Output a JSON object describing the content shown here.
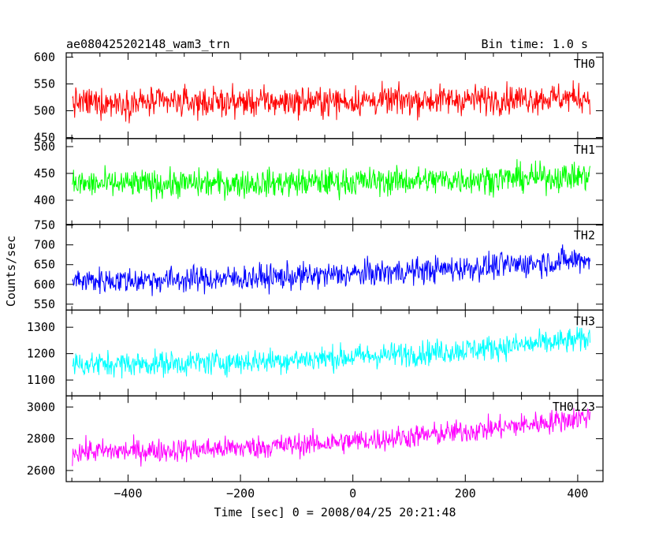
{
  "header": {
    "title": "ae080425202148_wam3_trn",
    "bin_time": "Bin time: 1.0 s"
  },
  "axes": {
    "xlabel": "Time [sec] 0 = 2008/04/25 20:21:48",
    "ylabel": "Counts/sec"
  },
  "chart_data": {
    "type": "line",
    "title": "ae080425202148_wam3_trn",
    "subtitle": "Bin time: 1.0 s",
    "xlabel": "Time [sec] 0 = 2008/04/25 20:21:48",
    "ylabel": "Counts/sec",
    "xlim": [
      -510,
      445
    ],
    "x_ticks": [
      -400,
      -200,
      0,
      200,
      400
    ],
    "x_tick_labels": [
      "−400",
      "−200",
      "0",
      "200",
      "400"
    ],
    "x_start": -499,
    "x_end": 422,
    "x_step": 1,
    "grid": false,
    "panels": [
      {
        "name": "TH0",
        "color": "#ff0000",
        "ylim": [
          448,
          608
        ],
        "y_ticks": [
          450,
          500,
          550,
          600
        ],
        "y_tick_labels": [
          "450",
          "500",
          "550",
          "600"
        ],
        "mean_start": 515,
        "mean_end": 525,
        "noise": 23
      },
      {
        "name": "TH1",
        "color": "#00ff00",
        "ylim": [
          355,
          515
        ],
        "y_ticks": [
          400,
          450,
          500
        ],
        "y_tick_labels": [
          "400",
          "450",
          "500"
        ],
        "mean_start": 430,
        "mean_end": 445,
        "noise": 22
      },
      {
        "name": "TH2",
        "color": "#0000ff",
        "ylim": [
          535,
          752
        ],
        "y_ticks": [
          550,
          600,
          650,
          700,
          750
        ],
        "y_tick_labels": [
          "550",
          "600",
          "650",
          "700",
          "750"
        ],
        "mean_start": 610,
        "mean_end": 665,
        "noise": 28
      },
      {
        "name": "TH3",
        "color": "#00ffff",
        "ylim": [
          1040,
          1365
        ],
        "y_ticks": [
          1100,
          1200,
          1300
        ],
        "y_tick_labels": [
          "1100",
          "1200",
          "1300"
        ],
        "mean_start": 1160,
        "mean_end": 1255,
        "noise": 40
      },
      {
        "name": "TH0123",
        "color": "#ff00ff",
        "ylim": [
          2530,
          3070
        ],
        "y_ticks": [
          2600,
          2800,
          3000
        ],
        "y_tick_labels": [
          "2600",
          "2800",
          "3000"
        ],
        "mean_start": 2720,
        "mean_end": 2940,
        "noise": 62
      }
    ],
    "series": [
      {
        "name": "TH0"
      },
      {
        "name": "TH1"
      },
      {
        "name": "TH2"
      },
      {
        "name": "TH3"
      },
      {
        "name": "TH0123"
      }
    ]
  }
}
